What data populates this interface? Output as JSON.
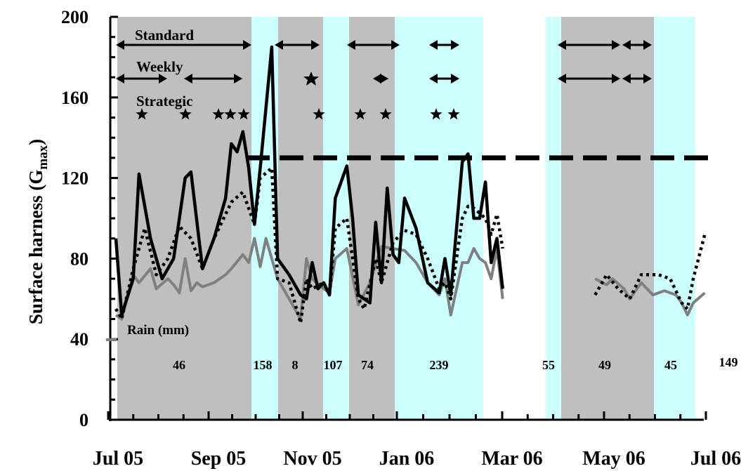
{
  "chart_data": {
    "type": "line",
    "ylabel": "Surface harness (G",
    "ylabel_sub": "max",
    "ylabel_end": ")",
    "ylim": [
      0,
      200
    ],
    "y_ticks": [
      "0",
      "40",
      "80",
      "120",
      "160",
      "200"
    ],
    "x_ticks": [
      "Jul 05",
      "Sep 05",
      "Nov 05",
      "Jan 06",
      "Mar 06",
      "May 06",
      "Jul 06"
    ],
    "threshold": 130,
    "rain_label": "Rain (mm)",
    "band_labels": [
      "Standard",
      "Weekly",
      "Strategic"
    ],
    "rain_totals": [
      "46",
      "158",
      "8",
      "107",
      "74",
      "239",
      "55",
      "49",
      "45",
      "149"
    ],
    "colors": {
      "gray_band": "#bfbfbf",
      "cyan_band": "#ccffff",
      "standard": "#000000",
      "strategic": "#000000",
      "rain": "#808080"
    },
    "series": [
      {
        "style": "solid-black",
        "values": [
          [
            0,
            90
          ],
          [
            1,
            52
          ],
          [
            3,
            70
          ],
          [
            4,
            122
          ],
          [
            6,
            90
          ],
          [
            8,
            70
          ],
          [
            10,
            80
          ],
          [
            12,
            120
          ],
          [
            13,
            123
          ],
          [
            15,
            75
          ],
          [
            17,
            90
          ],
          [
            19,
            110
          ],
          [
            20,
            137
          ],
          [
            21,
            133
          ],
          [
            22,
            143
          ],
          [
            23,
            125
          ],
          [
            24,
            97
          ],
          [
            25,
            125
          ],
          [
            27,
            185
          ],
          [
            28,
            80
          ],
          [
            30,
            72
          ],
          [
            32,
            62
          ],
          [
            33,
            60
          ],
          [
            34,
            78
          ],
          [
            35,
            65
          ],
          [
            36,
            68
          ],
          [
            37,
            62
          ],
          [
            38,
            110
          ],
          [
            40,
            126
          ],
          [
            41,
            100
          ],
          [
            42,
            62
          ],
          [
            44,
            58
          ],
          [
            45,
            98
          ],
          [
            46,
            68
          ],
          [
            47,
            115
          ],
          [
            48,
            82
          ],
          [
            49,
            78
          ],
          [
            50,
            110
          ],
          [
            52,
            95
          ],
          [
            54,
            68
          ],
          [
            56,
            63
          ],
          [
            57,
            80
          ],
          [
            58,
            62
          ],
          [
            60,
            128
          ],
          [
            61,
            132
          ],
          [
            62,
            100
          ],
          [
            63,
            100
          ],
          [
            64,
            118
          ],
          [
            65,
            78
          ],
          [
            66,
            90
          ],
          [
            67,
            65
          ]
        ]
      },
      {
        "style": "dotted-black",
        "values": [
          [
            0,
            55
          ],
          [
            1,
            50
          ],
          [
            3,
            75
          ],
          [
            5,
            95
          ],
          [
            7,
            72
          ],
          [
            9,
            80
          ],
          [
            11,
            96
          ],
          [
            13,
            90
          ],
          [
            15,
            75
          ],
          [
            17,
            90
          ],
          [
            20,
            108
          ],
          [
            22,
            113
          ],
          [
            24,
            97
          ],
          [
            25,
            120
          ],
          [
            27,
            125
          ],
          [
            28,
            70
          ],
          [
            30,
            68
          ],
          [
            32,
            48
          ],
          [
            33,
            70
          ],
          [
            34,
            65
          ],
          [
            36,
            68
          ],
          [
            37,
            62
          ],
          [
            38,
            95
          ],
          [
            40,
            100
          ],
          [
            42,
            60
          ],
          [
            43,
            55
          ],
          [
            45,
            80
          ],
          [
            46,
            68
          ],
          [
            48,
            88
          ],
          [
            50,
            94
          ],
          [
            52,
            92
          ],
          [
            54,
            80
          ],
          [
            56,
            65
          ],
          [
            57,
            68
          ],
          [
            58,
            60
          ],
          [
            60,
            100
          ],
          [
            61,
            106
          ],
          [
            62,
            105
          ],
          [
            64,
            100
          ],
          [
            65,
            92
          ],
          [
            66,
            102
          ],
          [
            67,
            85
          ],
          [
            83,
            62
          ],
          [
            85,
            72
          ],
          [
            87,
            65
          ],
          [
            89,
            60
          ],
          [
            91,
            72
          ],
          [
            94,
            72
          ],
          [
            96,
            70
          ],
          [
            98,
            58
          ],
          [
            99,
            55
          ],
          [
            100,
            70
          ],
          [
            102,
            92
          ]
        ]
      },
      {
        "style": "solid-gray",
        "values": [
          [
            0,
            52
          ],
          [
            1,
            50
          ],
          [
            3,
            72
          ],
          [
            4,
            68
          ],
          [
            6,
            75
          ],
          [
            7,
            65
          ],
          [
            9,
            70
          ],
          [
            10,
            67
          ],
          [
            11,
            63
          ],
          [
            12,
            80
          ],
          [
            13,
            64
          ],
          [
            14,
            68
          ],
          [
            15,
            66
          ],
          [
            17,
            68
          ],
          [
            19,
            72
          ],
          [
            20,
            75
          ],
          [
            22,
            82
          ],
          [
            23,
            78
          ],
          [
            24,
            90
          ],
          [
            25,
            76
          ],
          [
            26,
            90
          ],
          [
            28,
            70
          ],
          [
            30,
            60
          ],
          [
            32,
            50
          ],
          [
            33,
            80
          ],
          [
            34,
            70
          ],
          [
            36,
            65
          ],
          [
            37,
            63
          ],
          [
            38,
            80
          ],
          [
            40,
            85
          ],
          [
            42,
            57
          ],
          [
            44,
            68
          ],
          [
            46,
            86
          ],
          [
            48,
            85
          ],
          [
            50,
            84
          ],
          [
            52,
            78
          ],
          [
            54,
            68
          ],
          [
            56,
            62
          ],
          [
            57,
            70
          ],
          [
            58,
            52
          ],
          [
            60,
            78
          ],
          [
            61,
            78
          ],
          [
            62,
            85
          ],
          [
            63,
            80
          ],
          [
            64,
            78
          ],
          [
            65,
            70
          ],
          [
            66,
            85
          ],
          [
            67,
            60
          ],
          [
            83,
            70
          ],
          [
            85,
            67
          ],
          [
            86,
            70
          ],
          [
            88,
            65
          ],
          [
            89,
            60
          ],
          [
            91,
            68
          ],
          [
            93,
            62
          ],
          [
            95,
            64
          ],
          [
            97,
            62
          ],
          [
            98,
            58
          ],
          [
            99,
            52
          ],
          [
            100,
            58
          ],
          [
            102,
            63
          ]
        ]
      }
    ]
  }
}
